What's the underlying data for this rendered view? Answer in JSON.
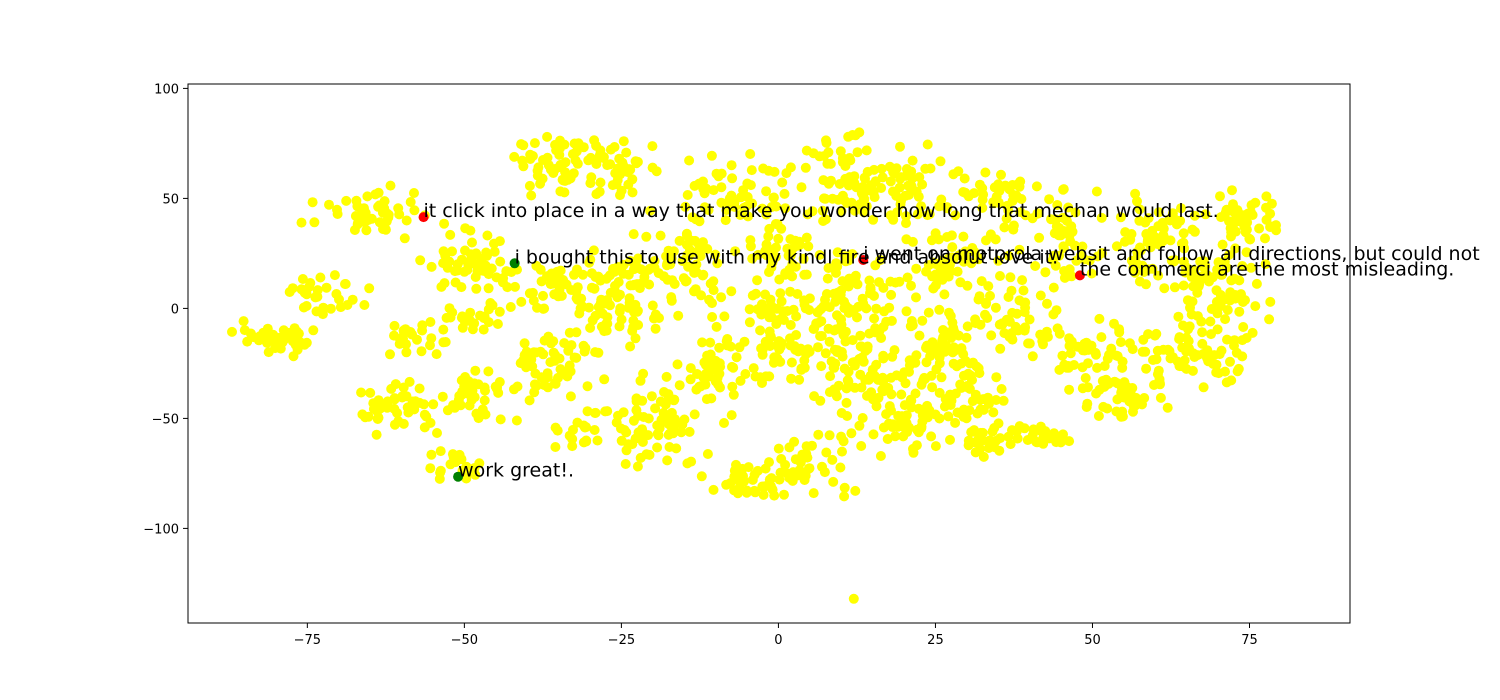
{
  "chart_data": {
    "type": "scatter",
    "title": "",
    "xlabel": "",
    "ylabel": "",
    "xlim": [
      -94,
      91
    ],
    "ylim": [
      -143,
      102
    ],
    "grid": false,
    "colors": {
      "background": "#ffffff",
      "points": "#ffff00",
      "highlight_red": "#ff0000",
      "highlight_green": "#008000",
      "axes": "#000000"
    },
    "x_ticks": [
      {
        "value": -75,
        "label": "−75"
      },
      {
        "value": -50,
        "label": "−50"
      },
      {
        "value": -25,
        "label": "−25"
      },
      {
        "value": 0,
        "label": "0"
      },
      {
        "value": 25,
        "label": "25"
      },
      {
        "value": 50,
        "label": "50"
      },
      {
        "value": 75,
        "label": "75"
      }
    ],
    "y_ticks": [
      {
        "value": 100,
        "label": "100"
      },
      {
        "value": 50,
        "label": "50"
      },
      {
        "value": 0,
        "label": "0"
      },
      {
        "value": -50,
        "label": "−50"
      },
      {
        "value": -100,
        "label": "−100"
      }
    ],
    "background_clusters": [
      {
        "cx": -80,
        "cy": -14,
        "rx": 6,
        "ry": 6,
        "n": 40
      },
      {
        "cx": -72,
        "cy": 6,
        "rx": 5,
        "ry": 7,
        "n": 30
      },
      {
        "cx": -65,
        "cy": 44,
        "rx": 7,
        "ry": 8,
        "n": 45
      },
      {
        "cx": -60,
        "cy": -45,
        "rx": 6,
        "ry": 9,
        "n": 45
      },
      {
        "cx": -58,
        "cy": -15,
        "rx": 4,
        "ry": 6,
        "n": 25
      },
      {
        "cx": -48,
        "cy": 20,
        "rx": 6,
        "ry": 12,
        "n": 60
      },
      {
        "cx": -48,
        "cy": -40,
        "rx": 5,
        "ry": 9,
        "n": 40
      },
      {
        "cx": -50,
        "cy": -5,
        "rx": 5,
        "ry": 6,
        "n": 25
      },
      {
        "cx": -52,
        "cy": -72,
        "rx": 4,
        "ry": 6,
        "n": 20
      },
      {
        "cx": -35,
        "cy": 65,
        "rx": 6,
        "ry": 12,
        "n": 55
      },
      {
        "cx": -36,
        "cy": -25,
        "rx": 6,
        "ry": 12,
        "n": 55
      },
      {
        "cx": -35,
        "cy": 10,
        "rx": 5,
        "ry": 10,
        "n": 40
      },
      {
        "cx": -28,
        "cy": -55,
        "rx": 5,
        "ry": 10,
        "n": 35
      },
      {
        "cx": -25,
        "cy": 5,
        "rx": 6,
        "ry": 20,
        "n": 80
      },
      {
        "cx": -25,
        "cy": 62,
        "rx": 5,
        "ry": 12,
        "n": 40
      },
      {
        "cx": -18,
        "cy": -50,
        "rx": 6,
        "ry": 20,
        "n": 60
      },
      {
        "cx": -15,
        "cy": 20,
        "rx": 7,
        "ry": 18,
        "n": 70
      },
      {
        "cx": -10,
        "cy": -30,
        "rx": 6,
        "ry": 15,
        "n": 50
      },
      {
        "cx": -5,
        "cy": 55,
        "rx": 7,
        "ry": 12,
        "n": 55
      },
      {
        "cx": -5,
        "cy": -78,
        "rx": 5,
        "ry": 6,
        "n": 30
      },
      {
        "cx": 0,
        "cy": -10,
        "rx": 7,
        "ry": 22,
        "n": 90
      },
      {
        "cx": 0,
        "cy": 25,
        "rx": 6,
        "ry": 12,
        "n": 45
      },
      {
        "cx": 5,
        "cy": -70,
        "rx": 6,
        "ry": 12,
        "n": 45
      },
      {
        "cx": 10,
        "cy": 60,
        "rx": 6,
        "ry": 20,
        "n": 60
      },
      {
        "cx": 12,
        "cy": -25,
        "rx": 6,
        "ry": 25,
        "n": 90
      },
      {
        "cx": 12,
        "cy": 10,
        "rx": 6,
        "ry": 15,
        "n": 60
      },
      {
        "cx": 20,
        "cy": 55,
        "rx": 6,
        "ry": 15,
        "n": 55
      },
      {
        "cx": 20,
        "cy": -50,
        "rx": 6,
        "ry": 15,
        "n": 50
      },
      {
        "cx": 25,
        "cy": -15,
        "rx": 6,
        "ry": 18,
        "n": 70
      },
      {
        "cx": 28,
        "cy": 20,
        "rx": 6,
        "ry": 15,
        "n": 55
      },
      {
        "cx": 30,
        "cy": -40,
        "rx": 5,
        "ry": 12,
        "n": 45
      },
      {
        "cx": 32,
        "cy": -60,
        "rx": 4,
        "ry": 6,
        "n": 25
      },
      {
        "cx": 35,
        "cy": 50,
        "rx": 6,
        "ry": 12,
        "n": 45
      },
      {
        "cx": 38,
        "cy": -5,
        "rx": 6,
        "ry": 15,
        "n": 50
      },
      {
        "cx": 42,
        "cy": -58,
        "rx": 4,
        "ry": 5,
        "n": 25
      },
      {
        "cx": 45,
        "cy": 30,
        "rx": 6,
        "ry": 15,
        "n": 50
      },
      {
        "cx": 50,
        "cy": -20,
        "rx": 5,
        "ry": 15,
        "n": 45
      },
      {
        "cx": 55,
        "cy": -40,
        "rx": 5,
        "ry": 10,
        "n": 40
      },
      {
        "cx": 60,
        "cy": 30,
        "rx": 6,
        "ry": 20,
        "n": 60
      },
      {
        "cx": 62,
        "cy": -20,
        "rx": 5,
        "ry": 12,
        "n": 40
      },
      {
        "cx": 70,
        "cy": 10,
        "rx": 6,
        "ry": 25,
        "n": 80
      },
      {
        "cx": 75,
        "cy": 40,
        "rx": 5,
        "ry": 12,
        "n": 45
      },
      {
        "cx": 70,
        "cy": -25,
        "rx": 4,
        "ry": 8,
        "n": 25
      }
    ],
    "background_singletons": [
      {
        "x": 12,
        "y": -132
      }
    ],
    "highlighted_points": [
      {
        "x": -56.5,
        "y": 41.5,
        "color": "#ff0000",
        "label": "it click into place in a way that make you wonder how long that mechan would last."
      },
      {
        "x": -42,
        "y": 20.5,
        "color": "#008000",
        "label": "i bought this to use with my kindl fire and absolut love it."
      },
      {
        "x": 13.5,
        "y": 22,
        "color": "#ff0000",
        "label": "i went on motorola websit and follow all directions, but could not"
      },
      {
        "x": 48,
        "y": 15,
        "color": "#ff0000",
        "label": "the commerci are the most misleading."
      },
      {
        "x": -51,
        "y": -76.5,
        "color": "#008000",
        "label": "work great!."
      }
    ]
  }
}
